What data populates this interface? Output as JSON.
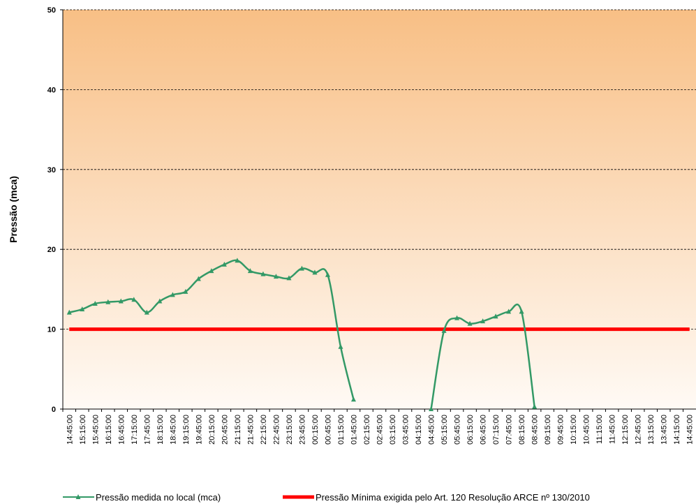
{
  "chart_data": {
    "type": "line",
    "y_label": "Pressão  (mca)",
    "categories": [
      "14:45:00",
      "15:15:00",
      "15:45:00",
      "16:15:00",
      "16:45:00",
      "17:15:00",
      "17:45:00",
      "18:15:00",
      "18:45:00",
      "19:15:00",
      "19:45:00",
      "20:15:00",
      "20:45:00",
      "21:15:00",
      "21:45:00",
      "22:15:00",
      "22:45:00",
      "23:15:00",
      "23:45:00",
      "00:15:00",
      "00:45:00",
      "01:15:00",
      "01:45:00",
      "02:15:00",
      "02:45:00",
      "03:15:00",
      "03:45:00",
      "04:15:00",
      "04:45:00",
      "05:15:00",
      "05:45:00",
      "06:15:00",
      "06:45:00",
      "07:15:00",
      "07:45:00",
      "08:15:00",
      "08:45:00",
      "09:15:00",
      "09:45:00",
      "10:15:00",
      "10:45:00",
      "11:15:00",
      "11:45:00",
      "12:15:00",
      "12:45:00",
      "13:15:00",
      "13:45:00",
      "14:15:00",
      "14:45:00"
    ],
    "series": [
      {
        "name": "Pressão medida no local (mca)",
        "color": "#339966",
        "values": [
          12.1,
          12.5,
          13.2,
          13.4,
          13.5,
          13.7,
          12.1,
          13.5,
          14.3,
          14.7,
          16.3,
          17.3,
          18.1,
          18.6,
          17.3,
          16.9,
          16.6,
          16.4,
          17.6,
          17.1,
          16.8,
          7.8,
          1.2,
          null,
          null,
          null,
          null,
          null,
          0,
          9.8,
          11.4,
          10.7,
          11.0,
          11.6,
          12.2,
          12.2,
          0.3,
          null,
          null,
          null,
          null,
          null,
          null,
          null,
          null,
          null,
          null,
          null,
          null
        ]
      },
      {
        "name": "Pressão Mínima exigida pelo Art. 120 Resolução ARCE nº 130/2010",
        "color": "#ff0000",
        "values": [
          10,
          10,
          10,
          10,
          10,
          10,
          10,
          10,
          10,
          10,
          10,
          10,
          10,
          10,
          10,
          10,
          10,
          10,
          10,
          10,
          10,
          10,
          10,
          10,
          10,
          10,
          10,
          10,
          10,
          10,
          10,
          10,
          10,
          10,
          10,
          10,
          10,
          10,
          10,
          10,
          10,
          10,
          10,
          10,
          10,
          10,
          10,
          10,
          10
        ]
      }
    ],
    "ylim": [
      0,
      50
    ],
    "yticks": [
      0,
      10,
      20,
      30,
      40,
      50
    ],
    "grid": true
  }
}
